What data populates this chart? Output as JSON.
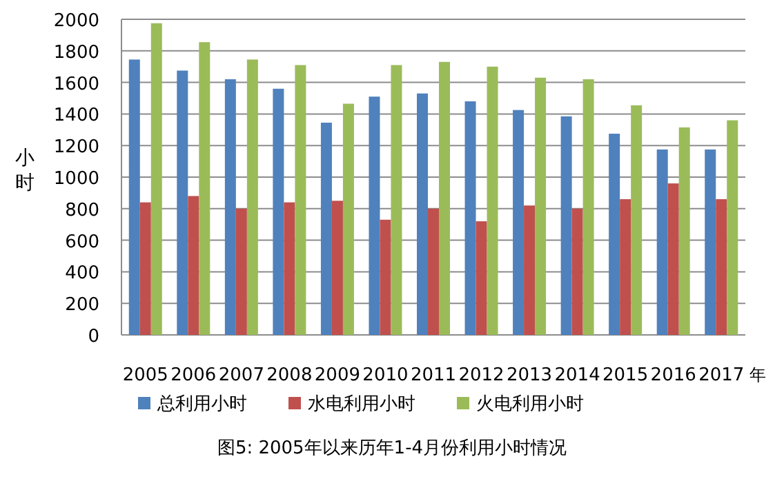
{
  "chart_data": {
    "type": "bar",
    "ylabel": "小时",
    "xlabel": "年",
    "categories": [
      "2005",
      "2006",
      "2007",
      "2008",
      "2009",
      "2010",
      "2011",
      "2012",
      "2013",
      "2014",
      "2015",
      "2016",
      "2017"
    ],
    "series": [
      {
        "name": "总利用小时",
        "color": "#4f81bd",
        "values": [
          1745,
          1675,
          1620,
          1560,
          1345,
          1510,
          1530,
          1480,
          1425,
          1385,
          1275,
          1175,
          1175
        ]
      },
      {
        "name": "水电利用小时",
        "color": "#c0504d",
        "values": [
          840,
          880,
          800,
          840,
          850,
          730,
          800,
          720,
          820,
          800,
          860,
          960,
          860
        ]
      },
      {
        "name": "火电利用小时",
        "color": "#9bbb59",
        "values": [
          1975,
          1855,
          1745,
          1710,
          1465,
          1710,
          1730,
          1700,
          1630,
          1620,
          1455,
          1315,
          1360
        ]
      }
    ],
    "ylim": [
      0,
      2000
    ],
    "yticks": [
      0,
      200,
      400,
      600,
      800,
      1000,
      1200,
      1400,
      1600,
      1800,
      2000
    ],
    "grid": "y",
    "legend": "bottom",
    "annotations": [
      "图5: 2005年以来历年1-4月份利用小时情况"
    ]
  }
}
